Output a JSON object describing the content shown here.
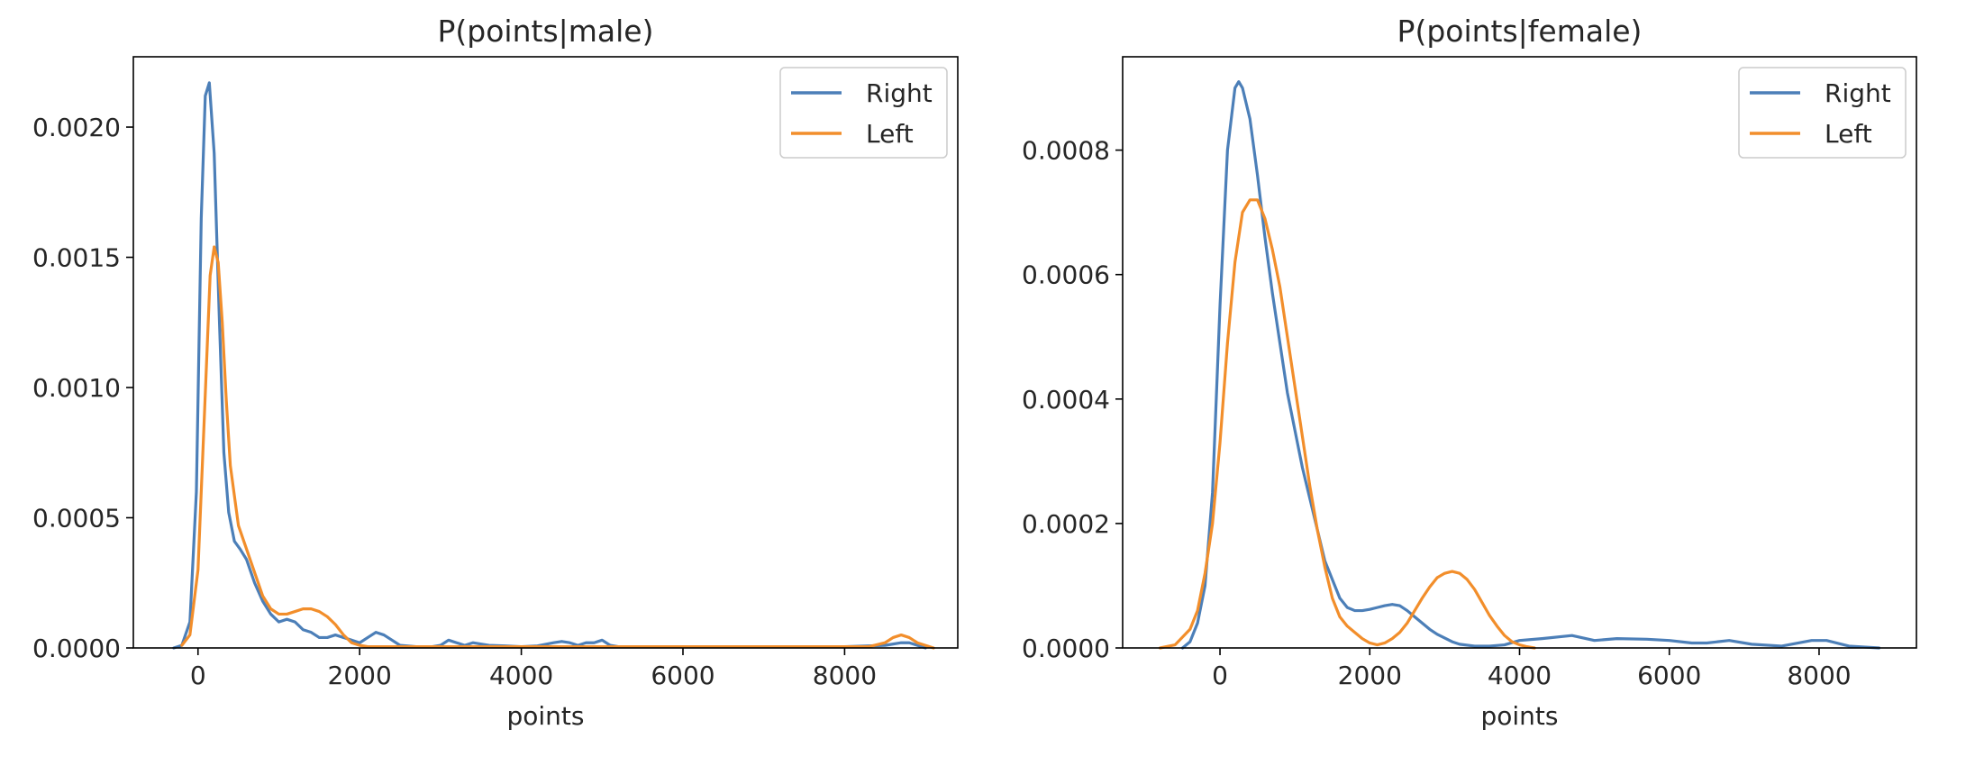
{
  "chart_data": [
    {
      "type": "line",
      "title": "P(points|male)",
      "xlabel": "points",
      "ylabel": "",
      "xlim": [
        -800,
        9400
      ],
      "ylim": [
        0,
        0.00227
      ],
      "xticks": [
        0,
        2000,
        4000,
        6000,
        8000
      ],
      "xtick_labels": [
        "0",
        "2000",
        "4000",
        "6000",
        "8000"
      ],
      "yticks": [
        0,
        0.0005,
        0.001,
        0.0015,
        0.002
      ],
      "ytick_labels": [
        "0.0000",
        "0.0005",
        "0.0010",
        "0.0015",
        "0.0020"
      ],
      "grid": false,
      "legend": "top-right",
      "series": [
        {
          "name": "Right",
          "color": "#4c7fb8",
          "x": [
            -300,
            -200,
            -100,
            -20,
            40,
            90,
            140,
            200,
            260,
            320,
            380,
            450,
            520,
            600,
            700,
            800,
            900,
            1000,
            1100,
            1200,
            1300,
            1400,
            1500,
            1600,
            1700,
            1800,
            1900,
            2000,
            2100,
            2200,
            2300,
            2400,
            2500,
            2700,
            2900,
            3000,
            3100,
            3200,
            3300,
            3400,
            3600,
            3800,
            4000,
            4200,
            4400,
            4500,
            4600,
            4700,
            4800,
            4900,
            5000,
            5100,
            5200,
            6000,
            7000,
            8000,
            8500,
            8700,
            8800,
            8900,
            9000
          ],
          "y": [
            0,
            1e-05,
            0.0001,
            0.0006,
            0.00165,
            0.00212,
            0.00217,
            0.0019,
            0.0013,
            0.00075,
            0.00052,
            0.00041,
            0.00038,
            0.00034,
            0.00025,
            0.00018,
            0.00013,
            0.0001,
            0.00011,
            0.0001,
            7e-05,
            6e-05,
            4e-05,
            4e-05,
            5e-05,
            4e-05,
            3e-05,
            2e-05,
            4e-05,
            6e-05,
            5e-05,
            3e-05,
            1e-05,
            5e-06,
            5e-06,
            1e-05,
            3e-05,
            2e-05,
            1e-05,
            2e-05,
            1e-05,
            8e-06,
            5e-06,
            8e-06,
            2e-05,
            2.5e-05,
            2e-05,
            1e-05,
            2e-05,
            2e-05,
            3e-05,
            1e-05,
            5e-06,
            5e-06,
            5e-06,
            5e-06,
            1e-05,
            2e-05,
            2e-05,
            1e-05,
            0
          ]
        },
        {
          "name": "Left",
          "color": "#f28e2b",
          "x": [
            -200,
            -100,
            0,
            80,
            150,
            200,
            250,
            300,
            350,
            400,
            500,
            600,
            700,
            800,
            900,
            1000,
            1100,
            1200,
            1300,
            1400,
            1500,
            1600,
            1700,
            1800,
            1900,
            2000,
            2100,
            2200,
            2500,
            3000,
            4000,
            5000,
            6000,
            7000,
            8000,
            8300,
            8500,
            8600,
            8700,
            8800,
            8900,
            9000,
            9100
          ],
          "y": [
            1e-05,
            5e-05,
            0.0003,
            0.0009,
            0.00143,
            0.00154,
            0.00148,
            0.00125,
            0.00095,
            0.0007,
            0.00047,
            0.00038,
            0.00029,
            0.0002,
            0.00015,
            0.00013,
            0.00013,
            0.00014,
            0.00015,
            0.00015,
            0.00014,
            0.00012,
            9e-05,
            5e-05,
            2e-05,
            1e-05,
            5e-06,
            5e-06,
            5e-06,
            5e-06,
            5e-06,
            5e-06,
            5e-06,
            5e-06,
            5e-06,
            5e-06,
            2e-05,
            4e-05,
            5e-05,
            4e-05,
            2e-05,
            1e-05,
            0
          ]
        }
      ]
    },
    {
      "type": "line",
      "title": "P(points|female)",
      "xlabel": "points",
      "ylabel": "",
      "xlim": [
        -1300,
        9300
      ],
      "ylim": [
        0,
        0.00095
      ],
      "xticks": [
        0,
        2000,
        4000,
        6000,
        8000
      ],
      "xtick_labels": [
        "0",
        "2000",
        "4000",
        "6000",
        "8000"
      ],
      "yticks": [
        0,
        0.0002,
        0.0004,
        0.0006,
        0.0008
      ],
      "ytick_labels": [
        "0.0000",
        "0.0002",
        "0.0004",
        "0.0006",
        "0.0008"
      ],
      "grid": false,
      "legend": "top-right",
      "series": [
        {
          "name": "Right",
          "color": "#4c7fb8",
          "x": [
            -500,
            -400,
            -300,
            -200,
            -100,
            0,
            100,
            200,
            250,
            300,
            400,
            500,
            600,
            700,
            800,
            900,
            1000,
            1100,
            1200,
            1300,
            1400,
            1500,
            1600,
            1700,
            1800,
            1900,
            2000,
            2100,
            2200,
            2300,
            2400,
            2500,
            2600,
            2700,
            2800,
            2900,
            3000,
            3100,
            3200,
            3400,
            3600,
            3800,
            4000,
            4300,
            4700,
            5000,
            5300,
            5700,
            6000,
            6300,
            6500,
            6800,
            7100,
            7500,
            7900,
            8100,
            8400,
            8800
          ],
          "y": [
            0,
            1e-05,
            4e-05,
            0.0001,
            0.00025,
            0.00055,
            0.0008,
            0.0009,
            0.00091,
            0.0009,
            0.00085,
            0.00076,
            0.00066,
            0.00057,
            0.00049,
            0.00041,
            0.00035,
            0.00029,
            0.00024,
            0.00019,
            0.00014,
            0.00011,
            8e-05,
            6.5e-05,
            6e-05,
            6e-05,
            6.2e-05,
            6.5e-05,
            6.8e-05,
            7e-05,
            6.8e-05,
            6e-05,
            5e-05,
            4e-05,
            3e-05,
            2.2e-05,
            1.6e-05,
            1e-05,
            6e-06,
            3e-06,
            3e-06,
            5e-06,
            1.2e-05,
            1.5e-05,
            2e-05,
            1.2e-05,
            1.5e-05,
            1.4e-05,
            1.2e-05,
            8e-06,
            8e-06,
            1.2e-05,
            6e-06,
            3e-06,
            1.2e-05,
            1.2e-05,
            3e-06,
            0
          ]
        },
        {
          "name": "Left",
          "color": "#f28e2b",
          "x": [
            -800,
            -600,
            -400,
            -300,
            -200,
            -100,
            0,
            100,
            200,
            300,
            400,
            500,
            600,
            700,
            800,
            900,
            1000,
            1100,
            1200,
            1300,
            1400,
            1500,
            1600,
            1700,
            1800,
            1900,
            2000,
            2100,
            2200,
            2300,
            2400,
            2500,
            2600,
            2700,
            2800,
            2900,
            3000,
            3100,
            3200,
            3300,
            3400,
            3500,
            3600,
            3700,
            3800,
            3900,
            4000,
            4100,
            4200
          ],
          "y": [
            0,
            5e-06,
            3e-05,
            6e-05,
            0.00012,
            0.0002,
            0.00033,
            0.00049,
            0.00062,
            0.0007,
            0.00072,
            0.00072,
            0.00069,
            0.00064,
            0.00058,
            0.0005,
            0.00042,
            0.00034,
            0.00026,
            0.00019,
            0.00013,
            8e-05,
            5e-05,
            3.5e-05,
            2.5e-05,
            1.5e-05,
            8e-06,
            5e-06,
            8e-06,
            1.5e-05,
            2.5e-05,
            4e-05,
            6e-05,
            8e-05,
            9.8e-05,
            0.000113,
            0.00012,
            0.000123,
            0.00012,
            0.00011,
            9.4e-05,
            7.3e-05,
            5.2e-05,
            3.5e-05,
            2e-05,
            1e-05,
            5e-06,
            2e-06,
            0
          ]
        }
      ]
    }
  ]
}
